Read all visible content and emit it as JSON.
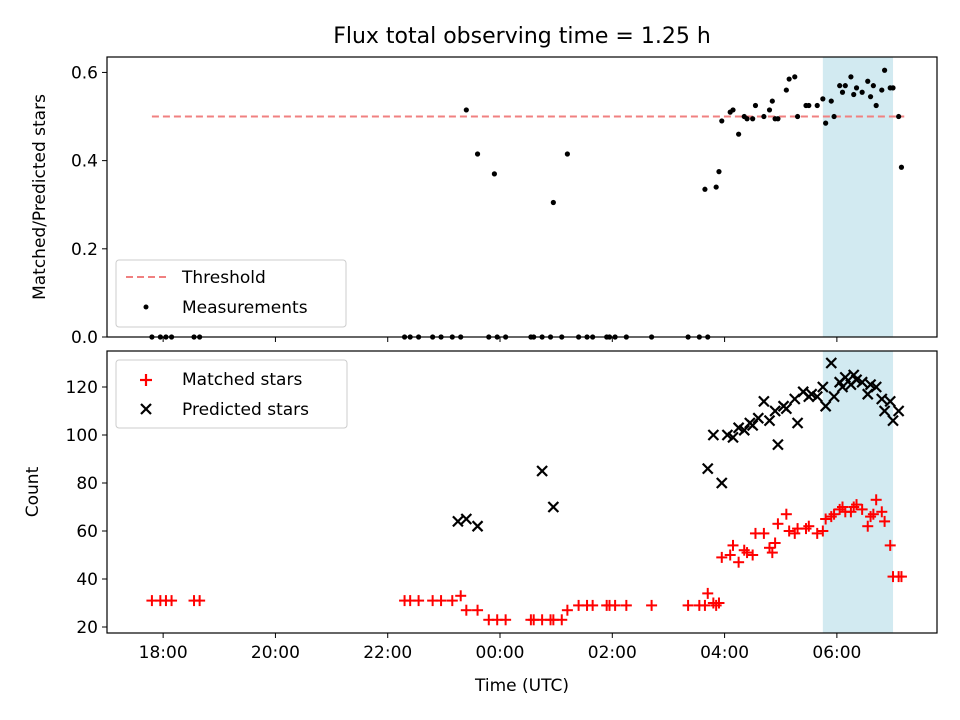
{
  "title": "Flux total observing time = 1.25 h",
  "chart_data": [
    {
      "type": "scatter",
      "ylabel": "Matched/Predicted stars",
      "xlim": [
        "17:00",
        "31:47"
      ],
      "ylim": [
        0,
        0.635
      ],
      "yticks": [
        "0.0",
        "0.2",
        "0.4",
        "0.6"
      ],
      "grid": false,
      "legend_placement": "lower-left",
      "legend": [
        "Threshold",
        "Measurements"
      ],
      "threshold": {
        "label": "Threshold",
        "value": 0.5,
        "x_range": [
          "17:48",
          "31:12"
        ],
        "color": "#f08080",
        "style": "dashed"
      },
      "highlight": {
        "x_range": [
          "29:45",
          "31:00"
        ],
        "color": "#add8e6"
      },
      "series": [
        {
          "name": "Measurements",
          "color": "#000000",
          "x": [
            "17:48",
            "17:57",
            "18:03",
            "18:09",
            "18:33",
            "18:39",
            "22:18",
            "22:24",
            "22:33",
            "22:48",
            "22:57",
            "23:09",
            "23:18",
            "23:24",
            "23:36",
            "23:48",
            "23:54",
            "23:57",
            "24:06",
            "24:33",
            "24:36",
            "24:45",
            "24:54",
            "24:57",
            "25:06",
            "25:12",
            "25:24",
            "25:33",
            "25:39",
            "25:54",
            "25:57",
            "26:03",
            "26:15",
            "26:42",
            "27:21",
            "27:33",
            "27:39",
            "27:42",
            "27:51",
            "27:54",
            "27:57",
            "28:06",
            "28:09",
            "28:15",
            "28:21",
            "28:24",
            "28:30",
            "28:33",
            "28:42",
            "28:48",
            "28:51",
            "28:54",
            "28:57",
            "29:06",
            "29:09",
            "29:15",
            "29:18",
            "29:27",
            "29:30",
            "29:39",
            "29:45",
            "29:48",
            "29:54",
            "29:57",
            "30:03",
            "30:06",
            "30:09",
            "30:15",
            "30:18",
            "30:21",
            "30:27",
            "30:33",
            "30:36",
            "30:39",
            "30:42",
            "30:48",
            "30:51",
            "30:57",
            "31:00",
            "31:06",
            "31:09"
          ],
          "y": [
            0,
            0,
            0,
            0,
            0,
            0,
            0,
            0,
            0,
            0,
            0,
            0,
            0,
            0.515,
            0.415,
            0,
            0.37,
            0,
            0,
            0,
            0,
            0,
            0,
            0.305,
            0,
            0.415,
            0,
            0,
            0,
            0,
            0,
            0,
            0,
            0,
            0,
            0,
            0.335,
            0,
            0.34,
            0.375,
            0.49,
            0.51,
            0.515,
            0.46,
            0.5,
            0.495,
            0.495,
            0.525,
            0.5,
            0.515,
            0.535,
            0.495,
            0.495,
            0.56,
            0.585,
            0.59,
            0.5,
            0.525,
            0.525,
            0.525,
            0.54,
            0.485,
            0.535,
            0.5,
            0.57,
            0.555,
            0.57,
            0.59,
            0.55,
            0.565,
            0.555,
            0.58,
            0.545,
            0.57,
            0.525,
            0.56,
            0.605,
            0.565,
            0.565,
            0.5,
            0.385
          ]
        }
      ]
    },
    {
      "type": "scatter",
      "xlabel": "Time (UTC)",
      "ylabel": "Count",
      "xlim": [
        "17:00",
        "31:47"
      ],
      "xticks": [
        "18:00",
        "20:00",
        "22:00",
        "00:00",
        "02:00",
        "04:00",
        "06:00"
      ],
      "ylim": [
        17.5,
        135
      ],
      "yticks": [
        "20",
        "40",
        "60",
        "80",
        "100",
        "120"
      ],
      "grid": false,
      "legend_placement": "upper-left",
      "legend": [
        "Matched stars",
        "Predicted stars"
      ],
      "highlight": {
        "x_range": [
          "29:45",
          "31:00"
        ],
        "color": "#add8e6"
      },
      "series": [
        {
          "name": "Matched stars",
          "marker": "+",
          "color": "#ff0000",
          "x": [
            "17:48",
            "17:57",
            "18:03",
            "18:09",
            "18:33",
            "18:39",
            "22:18",
            "22:24",
            "22:33",
            "22:48",
            "22:57",
            "23:09",
            "23:18",
            "23:24",
            "23:36",
            "23:48",
            "23:57",
            "24:06",
            "24:33",
            "24:36",
            "24:45",
            "24:54",
            "24:57",
            "25:06",
            "25:12",
            "25:24",
            "25:33",
            "25:39",
            "25:54",
            "25:57",
            "26:03",
            "26:15",
            "26:42",
            "27:21",
            "27:33",
            "27:39",
            "27:42",
            "27:48",
            "27:51",
            "27:54",
            "27:57",
            "28:06",
            "28:09",
            "28:15",
            "28:21",
            "28:24",
            "28:30",
            "28:33",
            "28:42",
            "28:48",
            "28:51",
            "28:54",
            "28:57",
            "29:06",
            "29:09",
            "29:15",
            "29:18",
            "29:27",
            "29:30",
            "29:39",
            "29:45",
            "29:48",
            "29:54",
            "29:57",
            "30:03",
            "30:06",
            "30:09",
            "30:15",
            "30:18",
            "30:21",
            "30:27",
            "30:33",
            "30:36",
            "30:39",
            "30:42",
            "30:48",
            "30:51",
            "30:57",
            "31:00",
            "31:06",
            "31:09"
          ],
          "y": [
            31,
            31,
            31,
            31,
            31,
            31,
            31,
            31,
            31,
            31,
            31,
            31,
            33,
            27,
            27,
            23,
            23,
            23,
            23,
            23,
            23,
            23,
            23,
            23,
            27,
            29,
            29,
            29,
            29,
            29,
            29,
            29,
            29,
            29,
            29,
            29,
            34,
            30,
            29,
            30,
            49,
            50,
            54,
            47,
            52,
            51,
            50,
            59,
            59,
            53,
            51,
            55,
            63,
            67,
            60,
            59,
            61,
            61,
            62,
            59,
            60,
            65,
            66,
            67,
            69,
            70,
            68,
            68,
            70,
            71,
            69,
            62,
            66,
            67,
            73,
            68,
            64,
            54,
            41,
            41,
            41
          ]
        },
        {
          "name": "Predicted stars",
          "marker": "x",
          "color": "#000000",
          "x": [
            "23:15",
            "23:24",
            "23:36",
            "24:45",
            "24:57",
            "27:42",
            "27:48",
            "27:57",
            "28:03",
            "28:09",
            "28:15",
            "28:21",
            "28:27",
            "28:30",
            "28:36",
            "28:42",
            "28:48",
            "28:54",
            "28:57",
            "29:03",
            "29:06",
            "29:15",
            "29:18",
            "29:24",
            "29:30",
            "29:33",
            "29:39",
            "29:45",
            "29:48",
            "29:54",
            "29:57",
            "30:03",
            "30:06",
            "30:09",
            "30:15",
            "30:18",
            "30:21",
            "30:27",
            "30:33",
            "30:36",
            "30:42",
            "30:48",
            "30:51",
            "30:57",
            "31:00",
            "31:06"
          ],
          "y": [
            64,
            65,
            62,
            85,
            70,
            86,
            100,
            80,
            100,
            99,
            103,
            102,
            105,
            104,
            107,
            114,
            106,
            110,
            96,
            112,
            111,
            115,
            105,
            118,
            116,
            117,
            116,
            120,
            112,
            130,
            116,
            122,
            120,
            124,
            121,
            125,
            123,
            122,
            117,
            121,
            120,
            115,
            110,
            114,
            106,
            110
          ]
        }
      ]
    }
  ]
}
